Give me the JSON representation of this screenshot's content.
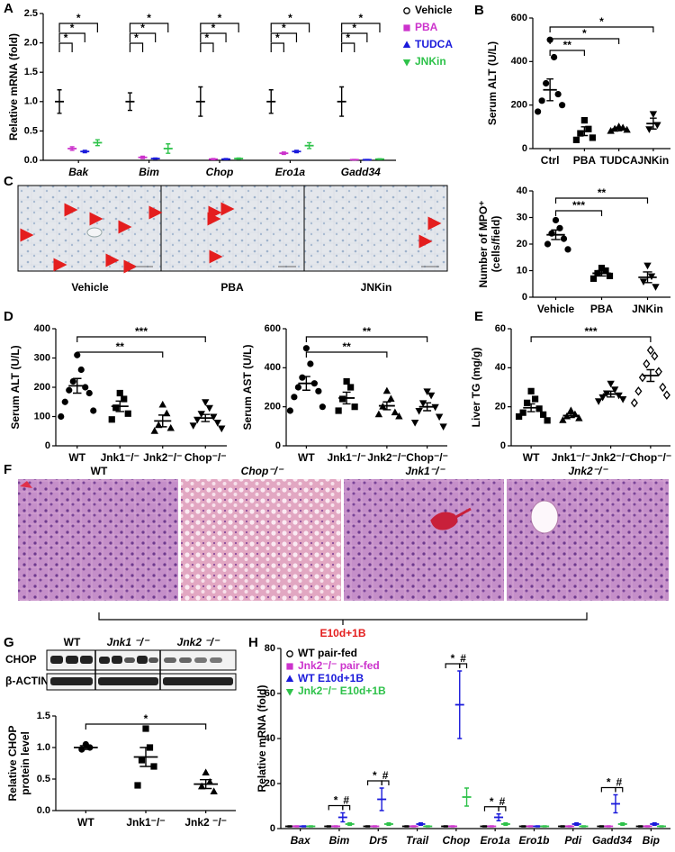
{
  "figure": {
    "panel_labels": [
      "A",
      "B",
      "C",
      "D",
      "E",
      "F",
      "G",
      "H"
    ],
    "micrograph_labels": [
      "Vehicle",
      "PBA",
      "JNKin"
    ],
    "histology_titles": [
      "WT",
      "Chop⁻/⁻",
      "Jnk1⁻/⁻",
      "Jnk2⁻/⁻"
    ],
    "histology_condition": "E10d+1B",
    "blot_groups": [
      "WT",
      "Jnk1 ⁻/⁻",
      "Jnk2 ⁻/⁻"
    ],
    "blot_rows": [
      "CHOP",
      "β-ACTIN"
    ]
  },
  "chart_data": [
    {
      "type": "dot",
      "ylabel": "Relative mRNA (fold)",
      "italic_categories": true,
      "categories": [
        "Bak",
        "Bim",
        "Chop",
        "Ero1a",
        "Gadd34"
      ],
      "ylim": [
        0,
        2.5
      ],
      "yticks": [
        {
          "value": 0,
          "label": "0.0"
        },
        0.5,
        {
          "value": 1,
          "label": "1.0"
        },
        1.5,
        {
          "value": 2,
          "label": "2.0"
        },
        2.5
      ],
      "legend": "outside-right",
      "series": [
        {
          "name": "Vehicle",
          "color": "#000000",
          "marker": "circle-open",
          "values": [
            1.0,
            1.0,
            1.0,
            1.0,
            1.0
          ],
          "errors": [
            0.2,
            0.15,
            0.25,
            0.2,
            0.25
          ]
        },
        {
          "name": "PBA",
          "color": "#cc33cc",
          "marker": "square",
          "values": [
            0.2,
            0.05,
            0.02,
            0.12,
            0.01
          ],
          "errors": [
            0.03,
            0.02,
            0.01,
            0.02,
            0.005
          ]
        },
        {
          "name": "TUDCA",
          "color": "#1a1adb",
          "marker": "triangle-up",
          "values": [
            0.15,
            0.03,
            0.02,
            0.15,
            0.01
          ],
          "errors": [
            0.02,
            0.01,
            0.01,
            0.02,
            0.005
          ]
        },
        {
          "name": "JNKin",
          "color": "#2ec24a",
          "marker": "triangle-down",
          "values": [
            0.3,
            0.2,
            0.03,
            0.25,
            0.02
          ],
          "errors": [
            0.05,
            0.08,
            0.01,
            0.05,
            0.005
          ]
        }
      ],
      "comparisons": [
        {
          "label": "*",
          "category": "Bak",
          "groups": [
            "Vehicle",
            "JNKin"
          ]
        },
        {
          "label": "*",
          "category": "Bak",
          "groups": [
            "Vehicle",
            "TUDCA"
          ]
        },
        {
          "label": "*",
          "category": "Bak",
          "groups": [
            "Vehicle",
            "PBA"
          ]
        },
        {
          "label": "*",
          "category": "Bim",
          "groups": [
            "Vehicle",
            "JNKin"
          ]
        },
        {
          "label": "*",
          "category": "Bim",
          "groups": [
            "Vehicle",
            "TUDCA"
          ]
        },
        {
          "label": "*",
          "category": "Bim",
          "groups": [
            "Vehicle",
            "PBA"
          ]
        },
        {
          "label": "*",
          "category": "Chop",
          "groups": [
            "Vehicle",
            "JNKin"
          ]
        },
        {
          "label": "*",
          "category": "Chop",
          "groups": [
            "Vehicle",
            "TUDCA"
          ]
        },
        {
          "label": "*",
          "category": "Chop",
          "groups": [
            "Vehicle",
            "PBA"
          ]
        },
        {
          "label": "*",
          "category": "Ero1a",
          "groups": [
            "Vehicle",
            "JNKin"
          ]
        },
        {
          "label": "*",
          "category": "Ero1a",
          "groups": [
            "Vehicle",
            "TUDCA"
          ]
        },
        {
          "label": "*",
          "category": "Ero1a",
          "groups": [
            "Vehicle",
            "PBA"
          ]
        },
        {
          "label": "*",
          "category": "Gadd34",
          "groups": [
            "Vehicle",
            "JNKin"
          ]
        },
        {
          "label": "*",
          "category": "Gadd34",
          "groups": [
            "Vehicle",
            "TUDCA"
          ]
        },
        {
          "label": "*",
          "category": "Gadd34",
          "groups": [
            "Vehicle",
            "PBA"
          ]
        }
      ]
    },
    {
      "type": "dot",
      "ylabel": "Serum ALT (U/L)",
      "categories": [
        "Ctrl",
        "PBA",
        "TUDCA",
        "JNKin"
      ],
      "markers": [
        "circle",
        "square",
        "triangle-up",
        "triangle-down"
      ],
      "ylim": [
        0,
        600
      ],
      "yticks": [
        0,
        200,
        400,
        600
      ],
      "values": [
        270,
        80,
        90,
        115
      ],
      "errors": [
        50,
        20,
        8,
        25
      ],
      "points": [
        [
          500,
          420,
          300,
          250,
          220,
          200,
          170
        ],
        [
          130,
          90,
          70,
          50,
          40
        ],
        [
          100,
          95,
          90,
          85,
          80
        ],
        [
          160,
          110,
          90
        ]
      ],
      "comparisons": [
        {
          "label": "*",
          "groups": [
            "Ctrl",
            "JNKin"
          ]
        },
        {
          "label": "*",
          "groups": [
            "Ctrl",
            "TUDCA"
          ]
        },
        {
          "label": "**",
          "groups": [
            "Ctrl",
            "PBA"
          ]
        }
      ]
    },
    {
      "type": "dot",
      "ylabel": [
        "Number of MPO⁺",
        "(cells/field)"
      ],
      "categories": [
        "Vehicle",
        "PBA",
        "JNKin"
      ],
      "markers": [
        "circle",
        "square",
        "triangle-down"
      ],
      "ylim": [
        0,
        40
      ],
      "yticks": [
        0,
        10,
        20,
        30,
        40
      ],
      "values": [
        23.5,
        9,
        7.5
      ],
      "errors": [
        1.8,
        1,
        2
      ],
      "points": [
        [
          29,
          26,
          24,
          22,
          20,
          18
        ],
        [
          11,
          10,
          9,
          8,
          7
        ],
        [
          12,
          8,
          6,
          4
        ]
      ],
      "comparisons": [
        {
          "label": "**",
          "groups": [
            "Vehicle",
            "JNKin"
          ]
        },
        {
          "label": "***",
          "groups": [
            "Vehicle",
            "PBA"
          ]
        }
      ]
    },
    {
      "type": "dot",
      "ylabel": "Serum ALT (U/L)",
      "categories": [
        "WT",
        "Jnk1⁻/⁻",
        "Jnk2⁻/⁻",
        "Chop⁻/⁻"
      ],
      "markers": [
        "circle",
        "square",
        "triangle-up",
        "triangle-down"
      ],
      "ylim": [
        0,
        400
      ],
      "yticks": [
        0,
        100,
        200,
        300,
        400
      ],
      "values": [
        205,
        135,
        85,
        95
      ],
      "errors": [
        25,
        18,
        20,
        12
      ],
      "points": [
        [
          310,
          260,
          220,
          200,
          190,
          180,
          150,
          120,
          100
        ],
        [
          180,
          160,
          130,
          110,
          90
        ],
        [
          140,
          110,
          70,
          60,
          50
        ],
        [
          150,
          130,
          110,
          100,
          90,
          80,
          70,
          60
        ]
      ],
      "comparisons": [
        {
          "label": "***",
          "groups": [
            "WT",
            "Chop⁻/⁻"
          ]
        },
        {
          "label": "**",
          "groups": [
            "WT",
            "Jnk2⁻/⁻"
          ]
        }
      ]
    },
    {
      "type": "dot",
      "ylabel": "Serum AST (U/L)",
      "categories": [
        "WT",
        "Jnk1⁻/⁻",
        "Jnk2⁻/⁻",
        "Chop⁻/⁻"
      ],
      "markers": [
        "circle",
        "square",
        "triangle-up",
        "triangle-down"
      ],
      "ylim": [
        0,
        600
      ],
      "yticks": [
        0,
        200,
        400,
        600
      ],
      "values": [
        320,
        245,
        205,
        200
      ],
      "errors": [
        35,
        30,
        20,
        20
      ],
      "points": [
        [
          500,
          420,
          350,
          320,
          300,
          280,
          250,
          200,
          180
        ],
        [
          330,
          300,
          240,
          200,
          180
        ],
        [
          280,
          240,
          200,
          170,
          160,
          150
        ],
        [
          280,
          260,
          220,
          200,
          180,
          150,
          120,
          100
        ]
      ],
      "comparisons": [
        {
          "label": "**",
          "groups": [
            "WT",
            "Chop⁻/⁻"
          ]
        },
        {
          "label": "**",
          "groups": [
            "WT",
            "Jnk2⁻/⁻"
          ]
        }
      ]
    },
    {
      "type": "dot",
      "ylabel": "Liver TG (mg/g)",
      "categories": [
        "WT",
        "Jnk1⁻/⁻",
        "Jnk2⁻/⁻",
        "Chop⁻/⁻"
      ],
      "markers": [
        "square",
        "triangle-up",
        "triangle-down",
        "diamond-open"
      ],
      "ylim": [
        0,
        60
      ],
      "yticks": [
        0,
        20,
        40,
        60
      ],
      "values": [
        19.5,
        15.5,
        26.5,
        36
      ],
      "errors": [
        2,
        1,
        1.5,
        3
      ],
      "points": [
        [
          28,
          24,
          22,
          19,
          17,
          16,
          15,
          13
        ],
        [
          18,
          16,
          15,
          14,
          13
        ],
        [
          32,
          29,
          27,
          26,
          25,
          24,
          23
        ],
        [
          49,
          46,
          42,
          38,
          35,
          30,
          28,
          26,
          22
        ]
      ],
      "comparisons": [
        {
          "label": "***",
          "groups": [
            "WT",
            "Chop⁻/⁻"
          ]
        }
      ]
    },
    {
      "type": "dot",
      "ylabel": [
        "Relative CHOP",
        "protein level"
      ],
      "categories": [
        "WT",
        "Jnk1⁻/⁻",
        "Jnk2 ⁻/⁻"
      ],
      "markers": [
        "circle",
        "square",
        "triangle-up"
      ],
      "ylim": [
        0,
        1.5
      ],
      "yticks": [
        {
          "value": 0,
          "label": "0.0"
        },
        0.5,
        {
          "value": 1,
          "label": "1.0"
        },
        1.5
      ],
      "values": [
        1.0,
        0.85,
        0.42
      ],
      "errors": [
        0.03,
        0.15,
        0.07
      ],
      "points": [
        [
          1.05,
          1.0,
          0.97
        ],
        [
          1.3,
          1.0,
          0.8,
          0.7,
          0.4
        ],
        [
          0.6,
          0.45,
          0.38,
          0.3
        ]
      ],
      "comparisons": [
        {
          "label": "*",
          "groups": [
            "WT",
            "Jnk2 ⁻/⁻"
          ]
        }
      ]
    },
    {
      "type": "dot",
      "ylabel": "Relative mRNA (fold)",
      "italic_categories": true,
      "categories": [
        "Bax",
        "Bim",
        "Dr5",
        "Trail",
        "Chop",
        "Ero1a",
        "Ero1b",
        "Pdi",
        "Gadd34",
        "Bip"
      ],
      "ylim": [
        0,
        80
      ],
      "yticks": [
        0,
        20,
        40,
        60,
        80
      ],
      "legend": "upper-left",
      "series": [
        {
          "name": "WT pair-fed",
          "color": "#000000",
          "marker": "circle-open",
          "values": [
            1,
            1,
            1,
            1,
            1,
            1,
            1,
            1,
            1,
            1
          ],
          "errors": [
            0.2,
            0.2,
            0.2,
            0.2,
            0.2,
            0.2,
            0.2,
            0.2,
            0.2,
            0.2
          ]
        },
        {
          "name": "Jnk2⁻/⁻ pair-fed",
          "color": "#cc33cc",
          "marker": "square",
          "values": [
            1,
            1,
            1,
            1,
            1,
            1,
            1,
            1,
            1,
            1
          ],
          "errors": [
            0.2,
            0.2,
            0.2,
            0.2,
            0.2,
            0.2,
            0.2,
            0.2,
            0.2,
            0.2
          ]
        },
        {
          "name": "WT E10d+1B",
          "color": "#1a1adb",
          "marker": "triangle-up",
          "values": [
            1,
            5,
            13,
            2,
            55,
            5,
            1,
            2,
            11,
            2
          ],
          "errors": [
            0.2,
            2,
            5,
            0.5,
            15,
            1.5,
            0.2,
            0.5,
            4,
            0.5
          ]
        },
        {
          "name": "Jnk2⁻/⁻ E10d+1B",
          "color": "#2ec24a",
          "marker": "triangle-down",
          "values": [
            1,
            2,
            2,
            1,
            14,
            2,
            1,
            1,
            2,
            1
          ],
          "errors": [
            0.2,
            0.5,
            0.5,
            0.2,
            4,
            0.5,
            0.2,
            0.2,
            0.5,
            0.2
          ]
        }
      ],
      "comparisons": [
        {
          "label": "*",
          "category": "Bim",
          "groups": [
            "WT pair-fed",
            "WT E10d+1B"
          ]
        },
        {
          "label": "#",
          "category": "Bim",
          "groups": [
            "WT E10d+1B",
            "Jnk2⁻/⁻ E10d+1B"
          ]
        },
        {
          "label": "*",
          "category": "Dr5",
          "groups": [
            "WT pair-fed",
            "WT E10d+1B"
          ]
        },
        {
          "label": "#",
          "category": "Dr5",
          "groups": [
            "WT E10d+1B",
            "Jnk2⁻/⁻ E10d+1B"
          ]
        },
        {
          "label": "*",
          "category": "Chop",
          "groups": [
            "WT pair-fed",
            "WT E10d+1B"
          ]
        },
        {
          "label": "#",
          "category": "Chop",
          "groups": [
            "WT E10d+1B",
            "Jnk2⁻/⁻ E10d+1B"
          ]
        },
        {
          "label": "*",
          "category": "Ero1a",
          "groups": [
            "WT pair-fed",
            "WT E10d+1B"
          ]
        },
        {
          "label": "#",
          "category": "Ero1a",
          "groups": [
            "WT E10d+1B",
            "Jnk2⁻/⁻ E10d+1B"
          ]
        },
        {
          "label": "*",
          "category": "Gadd34",
          "groups": [
            "WT pair-fed",
            "WT E10d+1B"
          ]
        },
        {
          "label": "#",
          "category": "Gadd34",
          "groups": [
            "WT E10d+1B",
            "Jnk2⁻/⁻ E10d+1B"
          ]
        }
      ]
    }
  ]
}
